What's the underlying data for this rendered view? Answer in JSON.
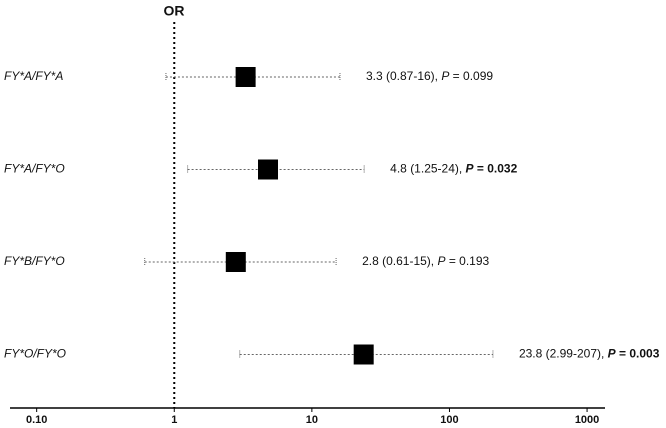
{
  "chart_data": {
    "type": "forest",
    "title": "OR",
    "categories": [
      "FY*A/FY*A",
      "FY*A/FY*O",
      "FY*B/FY*O",
      "FY*O/FY*O"
    ],
    "values": [
      3.3,
      4.8,
      2.8,
      23.8
    ],
    "lower": [
      0.87,
      1.25,
      0.61,
      2.99
    ],
    "upper": [
      16,
      24,
      15,
      207
    ],
    "annotations": [
      {
        "ci_label": "3.3 (0.87-16), ",
        "p_label": "P",
        "p_text": " = 0.099",
        "bold": false
      },
      {
        "ci_label": "4.8 (1.25-24), ",
        "p_label": "P",
        "p_text": " = 0.032",
        "bold": true
      },
      {
        "ci_label": "2.8 (0.61-15), ",
        "p_label": "P",
        "p_text": " = 0.193",
        "bold": false
      },
      {
        "ci_label": "23.8 (2.99-207), ",
        "p_label": "P",
        "p_text": " = 0.003",
        "bold": true
      }
    ],
    "reference": 1,
    "log_x": true,
    "color": "#000000",
    "xlim": [
      0.064,
      1350
    ],
    "xticks": [
      {
        "value": 0.1,
        "label": "0.10"
      },
      1,
      10,
      100,
      1000
    ]
  }
}
